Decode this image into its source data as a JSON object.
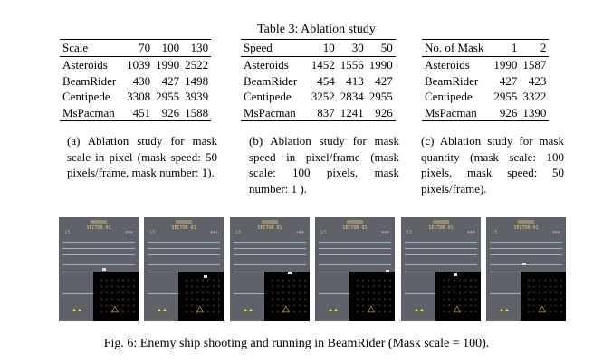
{
  "table_title": "Table 3: Ablation study",
  "tables": [
    {
      "headers": [
        "Scale",
        "70",
        "100",
        "130"
      ],
      "rows": [
        [
          "Asteroids",
          "1039",
          "1990",
          "2522"
        ],
        [
          "BeamRider",
          "430",
          "427",
          "1498"
        ],
        [
          "Centipede",
          "3308",
          "2955",
          "3939"
        ],
        [
          "MsPacman",
          "451",
          "926",
          "1588"
        ]
      ],
      "caption": "(a) Ablation study for mask scale in pixel (mask speed: 50 pixels/frame, mask number: 1)."
    },
    {
      "headers": [
        "Speed",
        "10",
        "30",
        "50"
      ],
      "rows": [
        [
          "Asteroids",
          "1452",
          "1556",
          "1990"
        ],
        [
          "BeamRider",
          "454",
          "413",
          "427"
        ],
        [
          "Centipede",
          "3252",
          "2834",
          "2955"
        ],
        [
          "MsPacman",
          "837",
          "1241",
          "926"
        ]
      ],
      "caption": "(b) Ablation study for mask speed in pixel/frame (mask scale: 100 pixels, mask number: 1 )."
    },
    {
      "headers": [
        "No. of Mask",
        "1",
        "2"
      ],
      "rows": [
        [
          "Asteroids",
          "1990",
          "1587"
        ],
        [
          "BeamRider",
          "427",
          "423"
        ],
        [
          "Centipede",
          "2955",
          "3322"
        ],
        [
          "MsPacman",
          "926",
          "1390"
        ]
      ],
      "caption": "(c) Ablation study for mask quantity (mask scale: 100 pixels, mask speed: 50 pixels/frame)."
    }
  ],
  "frames": [
    {
      "score": "000088",
      "sector": "SECTOR 01",
      "level": "13"
    },
    {
      "score": "000088",
      "sector": "SECTOR 01",
      "level": "13"
    },
    {
      "score": "000088",
      "sector": "SECTOR 01",
      "level": "13"
    },
    {
      "score": "000088",
      "sector": "SECTOR 01",
      "level": "13"
    },
    {
      "score": "000088",
      "sector": "SECTOR 01",
      "level": "13"
    },
    {
      "score": "000088",
      "sector": "SECTOR 01",
      "level": "13"
    }
  ],
  "figure_caption": "Fig. 6: Enemy ship shooting and running in BeamRider (Mask scale = 100)."
}
